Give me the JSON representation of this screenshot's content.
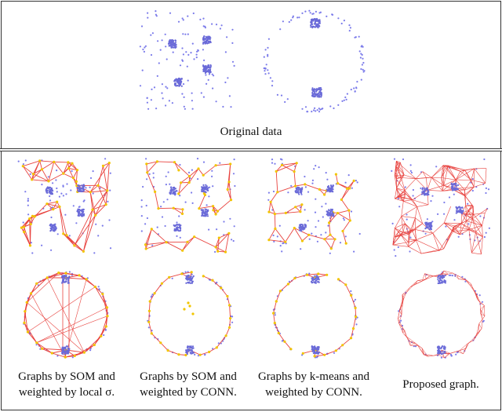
{
  "captions": {
    "original": "Original data",
    "col1_line1": "Graphs by SOM and",
    "col1_line2": "weighted by local σ.",
    "col2_line1": "Graphs by SOM and",
    "col2_line2": "weighted by CONN.",
    "col3_line1": "Graphs by k-means and",
    "col3_line2": "weighted by CONN.",
    "col4": "Proposed graph."
  },
  "colors": {
    "points": "#7b7bea",
    "cluster": "#6a6ad8",
    "edge": "#e8433f",
    "node": "#f2c500",
    "border": "#333333"
  }
}
